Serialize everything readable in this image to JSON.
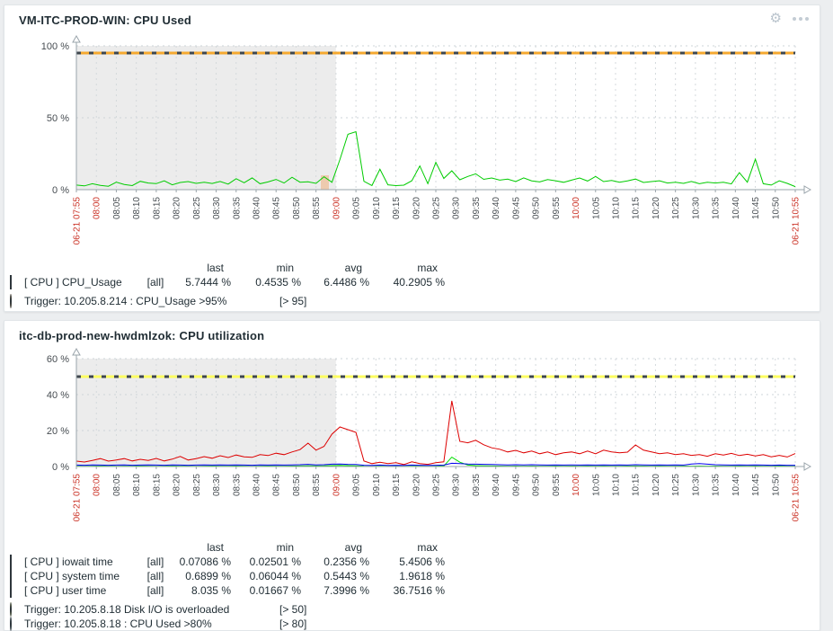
{
  "icons": {
    "gear_glyph": "⚙"
  },
  "panels": [
    {
      "title": "VM-ITC-PROD-WIN: CPU Used",
      "legend": {
        "headers": [
          "last",
          "min",
          "avg",
          "max"
        ],
        "rows": [
          {
            "color": "#00cc00",
            "shape": "square",
            "name": "[ CPU ] CPU_Usage",
            "scope": "[all]",
            "last": "5.7444 %",
            "min": "0.4535 %",
            "avg": "6.4486 %",
            "max": "40.2905 %"
          }
        ],
        "triggers": [
          {
            "color": "#f5b45a",
            "name": "Trigger: 10.205.8.214 : CPU_Usage >95%",
            "threshold": "[> 95]"
          }
        ]
      }
    },
    {
      "title": "itc-db-prod-new-hwdmlzok: CPU utilization",
      "legend": {
        "headers": [
          "last",
          "min",
          "avg",
          "max"
        ],
        "rows": [
          {
            "color": "#00ee00",
            "shape": "square",
            "name": "[ CPU ] iowait time",
            "scope": "[all]",
            "last": "0.07086 %",
            "min": "0.02501 %",
            "avg": "0.2356 %",
            "max": "5.4506 %"
          },
          {
            "color": "#0000ee",
            "shape": "square",
            "name": "[ CPU ] system time",
            "scope": "[all]",
            "last": "0.6899 %",
            "min": "0.06044 %",
            "avg": "0.5443 %",
            "max": "1.9618 %"
          },
          {
            "color": "#ee0000",
            "shape": "square",
            "name": "[ CPU ] user time",
            "scope": "[all]",
            "last": "8.035 %",
            "min": "0.01667 %",
            "avg": "7.3996 %",
            "max": "36.7516 %"
          }
        ],
        "triggers": [
          {
            "color": "#ffff66",
            "name": "Trigger: 10.205.8.18 Disk I/O is overloaded",
            "threshold": "[> 50]"
          },
          {
            "color": "#d6ebf5",
            "name": "Trigger: 10.205.8.18 : CPU Used >80%",
            "threshold": "[> 80]"
          }
        ]
      }
    }
  ],
  "time_axis": {
    "labels": [
      "06-21 07:55",
      "08:00",
      "08:05",
      "08:10",
      "08:15",
      "08:20",
      "08:25",
      "08:30",
      "08:35",
      "08:40",
      "08:45",
      "08:50",
      "08:55",
      "09:00",
      "09:05",
      "09:10",
      "09:15",
      "09:20",
      "09:25",
      "09:30",
      "09:35",
      "09:40",
      "09:45",
      "09:50",
      "09:55",
      "10:00",
      "10:05",
      "10:10",
      "10:15",
      "10:20",
      "10:25",
      "10:30",
      "10:35",
      "10:40",
      "10:45",
      "10:50",
      "06-21 10:55"
    ],
    "red_indices": [
      0,
      1,
      13,
      25,
      36
    ],
    "label_color": "#464c51",
    "highlight_color": "#cb3327"
  },
  "chart_data": [
    {
      "type": "line",
      "title": "VM-ITC-PROD-WIN: CPU Used",
      "xlabel": "",
      "ylabel": "%",
      "ylim": [
        0,
        100
      ],
      "y_ticks": [
        {
          "value": 0,
          "label": "0 %"
        },
        {
          "value": 50,
          "label": "50 %"
        },
        {
          "value": 100,
          "label": "100 %"
        }
      ],
      "grid": true,
      "shade": {
        "from_frac": 0.0,
        "to_frac": 0.361,
        "color": "#ececec"
      },
      "trigger_lines": [
        {
          "value": 95,
          "color": "#f5a930",
          "dash_color": "#3e464d",
          "label": "CPU_Usage >95%"
        }
      ],
      "event_markers": [
        {
          "time_frac": 0.345,
          "top_frac": 0.1,
          "color": "#f08c3c",
          "opacity": 0.35
        }
      ],
      "series": [
        {
          "name": "[ CPU ] CPU_Usage",
          "color": "#00cc00",
          "values": [
            3.2,
            2.6,
            4.1,
            3.0,
            2.4,
            5.2,
            3.6,
            2.8,
            5.8,
            4.6,
            4.2,
            6.1,
            3.4,
            5.0,
            5.6,
            4.4,
            5.1,
            4.3,
            5.7,
            3.9,
            7.6,
            4.8,
            8.2,
            4.1,
            5.4,
            7.1,
            4.6,
            8.6,
            5.2,
            5.5,
            4.4,
            9.0,
            5.1,
            21.0,
            38.5,
            40.3,
            5.8,
            2.9,
            14.2,
            3.4,
            2.8,
            3.1,
            6.2,
            16.5,
            4.2,
            19.0,
            7.8,
            13.1,
            6.9,
            9.2,
            11.0,
            7.2,
            8.1,
            6.6,
            7.3,
            5.6,
            8.2,
            6.1,
            5.4,
            7.0,
            6.2,
            5.1,
            6.6,
            8.1,
            6.0,
            9.2,
            5.6,
            6.4,
            5.2,
            6.1,
            7.4,
            5.0,
            5.6,
            6.2,
            4.6,
            5.1,
            4.4,
            5.7,
            4.1,
            5.2,
            4.6,
            5.1,
            4.0,
            11.8,
            5.2,
            21.2,
            4.1,
            3.2,
            6.1,
            4.4,
            2.1
          ]
        }
      ]
    },
    {
      "type": "line",
      "title": "itc-db-prod-new-hwdmlzok: CPU utilization",
      "xlabel": "",
      "ylabel": "%",
      "ylim": [
        0,
        60
      ],
      "y_ticks": [
        {
          "value": 0,
          "label": "0 %"
        },
        {
          "value": 20,
          "label": "20 %"
        },
        {
          "value": 40,
          "label": "40 %"
        },
        {
          "value": 60,
          "label": "60 %"
        }
      ],
      "grid": true,
      "shade": {
        "from_frac": 0.0,
        "to_frac": 0.361,
        "color": "#ececec"
      },
      "trigger_lines": [
        {
          "value": 50,
          "color": "#fdfd60",
          "dash_color": "#3e464d",
          "label": "Disk I/O is overloaded [> 50]"
        }
      ],
      "event_markers": [],
      "series": [
        {
          "name": "[ CPU ] iowait time",
          "color": "#00dd00",
          "values": [
            0.2,
            0.15,
            0.2,
            0.25,
            0.2,
            0.15,
            0.2,
            0.2,
            0.25,
            0.2,
            0.15,
            0.2,
            0.25,
            0.2,
            0.2,
            0.15,
            0.2,
            0.25,
            0.2,
            0.2,
            0.25,
            0.2,
            0.15,
            0.2,
            0.25,
            0.2,
            0.2,
            0.25,
            0.3,
            0.4,
            0.3,
            0.35,
            0.5,
            0.6,
            0.5,
            0.4,
            0.2,
            0.15,
            0.2,
            0.15,
            0.2,
            0.15,
            0.2,
            0.2,
            0.15,
            0.2,
            0.3,
            5.2,
            2.4,
            0.8,
            0.5,
            0.4,
            0.3,
            0.25,
            0.2,
            0.25,
            0.2,
            0.25,
            0.2,
            0.2,
            0.25,
            0.2,
            0.25,
            0.2,
            0.25,
            0.2,
            0.25,
            0.2,
            0.2,
            0.25,
            0.3,
            0.25,
            0.2,
            0.25,
            0.2,
            0.2,
            0.25,
            0.2,
            0.25,
            0.2,
            0.25,
            0.2,
            0.2,
            0.25,
            0.2,
            0.25,
            0.2,
            0.2,
            0.25,
            0.2,
            0.2
          ]
        },
        {
          "name": "[ CPU ] system time",
          "color": "#0000ee",
          "values": [
            0.8,
            0.7,
            0.9,
            0.8,
            0.7,
            0.8,
            0.9,
            0.7,
            0.8,
            0.9,
            0.8,
            0.7,
            0.9,
            0.8,
            0.7,
            0.8,
            0.9,
            0.8,
            0.9,
            0.8,
            0.9,
            0.8,
            0.7,
            0.9,
            0.8,
            0.9,
            0.8,
            0.9,
            1.0,
            1.2,
            0.9,
            1.0,
            1.3,
            1.4,
            1.2,
            1.1,
            0.7,
            0.6,
            0.8,
            0.6,
            0.7,
            0.6,
            0.8,
            0.7,
            0.6,
            0.7,
            0.8,
            1.8,
            1.6,
            1.4,
            1.3,
            1.2,
            1.1,
            1.0,
            0.9,
            1.0,
            0.9,
            1.0,
            0.9,
            0.8,
            0.9,
            0.8,
            0.9,
            0.8,
            0.9,
            0.8,
            0.9,
            0.8,
            0.9,
            0.8,
            1.0,
            0.9,
            0.8,
            0.9,
            0.8,
            0.9,
            0.8,
            1.4,
            1.6,
            1.3,
            1.0,
            0.9,
            0.8,
            0.9,
            0.8,
            0.9,
            0.8,
            0.7,
            0.8,
            0.7,
            0.7
          ]
        },
        {
          "name": "[ CPU ] user time",
          "color": "#dd0000",
          "values": [
            3.0,
            2.5,
            3.4,
            4.4,
            3.0,
            3.6,
            4.4,
            3.1,
            4.0,
            3.4,
            4.5,
            3.1,
            4.1,
            5.6,
            3.6,
            4.4,
            5.5,
            4.6,
            6.0,
            5.0,
            6.4,
            5.4,
            5.1,
            6.6,
            6.1,
            7.4,
            6.6,
            8.1,
            9.4,
            13.0,
            9.1,
            11.2,
            18.0,
            22.0,
            20.5,
            19.0,
            3.1,
            1.6,
            2.4,
            1.6,
            2.1,
            1.1,
            2.6,
            1.6,
            1.2,
            2.1,
            2.6,
            36.5,
            14.0,
            13.2,
            14.6,
            12.1,
            10.4,
            9.6,
            8.1,
            9.0,
            7.6,
            8.6,
            7.1,
            8.1,
            6.6,
            7.6,
            8.1,
            7.1,
            8.6,
            7.1,
            9.1,
            8.1,
            7.6,
            8.0,
            12.0,
            9.1,
            8.1,
            7.1,
            7.6,
            6.6,
            7.1,
            6.2,
            6.6,
            5.7,
            7.1,
            6.4,
            7.3,
            6.1,
            6.8,
            5.9,
            6.6,
            5.4,
            6.2,
            5.3,
            7.2
          ]
        }
      ]
    }
  ]
}
